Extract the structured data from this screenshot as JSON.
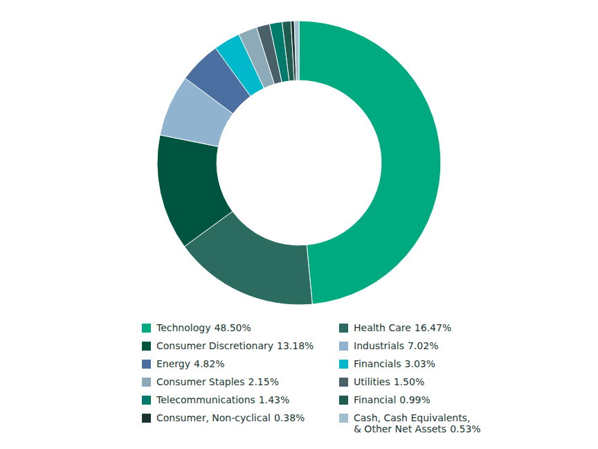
{
  "chart_data": {
    "type": "donut",
    "categories": [
      "Technology",
      "Health Care",
      "Consumer Discretionary",
      "Industrials",
      "Energy",
      "Financials",
      "Consumer Staples",
      "Utilities",
      "Telecommunications",
      "Financial",
      "Consumer, Non-cyclical",
      "Cash, Cash Equivalents,\n& Other Net Assets"
    ],
    "values": [
      48.5,
      16.47,
      13.18,
      7.02,
      4.82,
      3.03,
      2.15,
      1.5,
      1.43,
      0.99,
      0.38,
      0.53
    ],
    "value_labels": [
      "48.50%",
      "16.47%",
      "13.18%",
      "7.02%",
      "4.82%",
      "3.03%",
      "2.15%",
      "1.50%",
      "1.43%",
      "0.99%",
      "0.38%",
      "0.53%"
    ],
    "colors": [
      "#00AA80",
      "#2B6B60",
      "#005540",
      "#90B4D0",
      "#4A6FA0",
      "#00B8CC",
      "#8DAAB8",
      "#4A6068",
      "#007A6A",
      "#1E5C50",
      "#1A3530",
      "#A0BECE"
    ],
    "legend": "bottom"
  }
}
